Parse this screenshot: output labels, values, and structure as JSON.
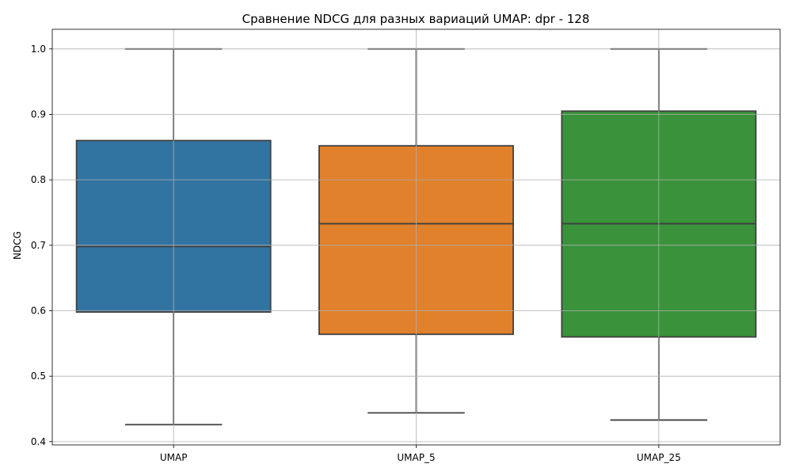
{
  "chart_data": {
    "type": "box",
    "title": "Сравнение NDCG для разных вариаций UMAP: dpr - 128",
    "xlabel": "",
    "ylabel": "NDCG",
    "ylim": [
      0.395,
      1.03
    ],
    "yticks": [
      "0.4",
      "0.5",
      "0.6",
      "0.7",
      "0.8",
      "0.9",
      "1.0"
    ],
    "grid": true,
    "categories": [
      "UMAP",
      "UMAP_5",
      "UMAP_25"
    ],
    "boxes": [
      {
        "category": "UMAP",
        "color": "#3274a1",
        "whisker_low": 0.426,
        "q1": 0.598,
        "median": 0.698,
        "q3": 0.86,
        "whisker_high": 1.0
      },
      {
        "category": "UMAP_5",
        "color": "#e1812c",
        "whisker_low": 0.444,
        "q1": 0.564,
        "median": 0.733,
        "q3": 0.852,
        "whisker_high": 1.0
      },
      {
        "category": "UMAP_25",
        "color": "#3a923a",
        "whisker_low": 0.433,
        "q1": 0.56,
        "median": 0.733,
        "q3": 0.905,
        "whisker_high": 1.0
      }
    ]
  }
}
